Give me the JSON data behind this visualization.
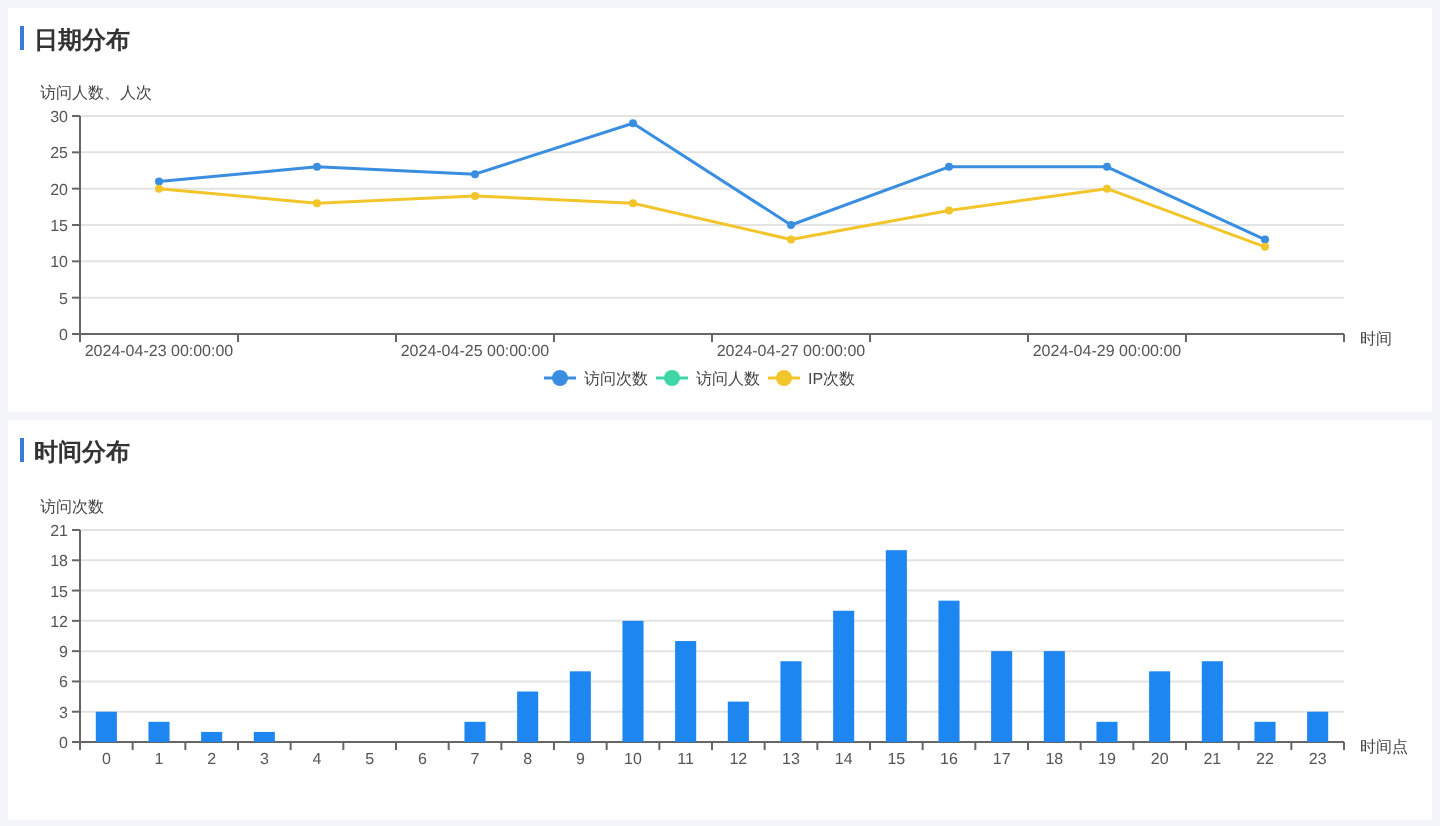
{
  "chart_data": [
    {
      "type": "line",
      "title": "日期分布",
      "ylabel": "访问人数、人次",
      "xlabel": "时间",
      "categories": [
        "2024-04-23 00:00:00",
        null,
        "2024-04-25 00:00:00",
        null,
        "2024-04-27 00:00:00",
        null,
        "2024-04-29 00:00:00",
        null
      ],
      "series": [
        {
          "name": "访问次数",
          "color": "#3a8ee0",
          "values": [
            21,
            23,
            22,
            29,
            15,
            23,
            23,
            13
          ]
        },
        {
          "name": "访问人数",
          "color": "#3fd6a6",
          "values": [
            null,
            null,
            null,
            null,
            null,
            null,
            null,
            null
          ]
        },
        {
          "name": "IP次数",
          "color": "#f2c52a",
          "values": [
            20,
            18,
            19,
            18,
            13,
            17,
            20,
            12
          ]
        }
      ],
      "ylim": [
        0,
        30
      ],
      "yticks": [
        0,
        5,
        10,
        15,
        20,
        25,
        30
      ],
      "grid": "y",
      "legend": "bottom",
      "marker": "circle",
      "line_style": "solid"
    },
    {
      "type": "bar",
      "title": "时间分布",
      "ylabel": "访问次数",
      "xlabel": "时间点",
      "categories": [
        "0",
        "1",
        "2",
        "3",
        "4",
        "5",
        "6",
        "7",
        "8",
        "9",
        "10",
        "11",
        "12",
        "13",
        "14",
        "15",
        "16",
        "17",
        "18",
        "19",
        "20",
        "21",
        "22",
        "23"
      ],
      "series": [
        {
          "color": "#1d86f0",
          "values": [
            3,
            2,
            1,
            1,
            0,
            0,
            0,
            2,
            5,
            7,
            12,
            10,
            4,
            8,
            13,
            19,
            14,
            9,
            9,
            2,
            7,
            8,
            2,
            3
          ]
        }
      ],
      "ylim": [
        0,
        21
      ],
      "yticks": [
        0,
        3,
        6,
        9,
        12,
        15,
        18,
        21
      ],
      "grid": "y"
    }
  ]
}
